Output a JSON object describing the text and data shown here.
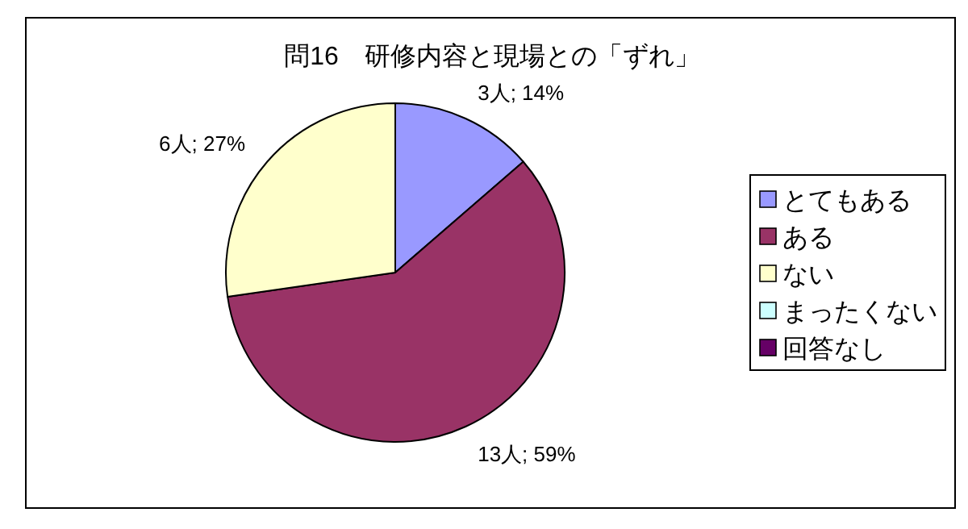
{
  "chart_data": {
    "type": "pie",
    "title": "問16　研修内容と現場との「ずれ」",
    "categories": [
      "とてもある",
      "ある",
      "ない",
      "まったくない",
      "回答なし"
    ],
    "values": [
      3,
      13,
      6,
      0,
      0
    ],
    "value_labels": [
      "3人; 14%",
      "13人; 59%",
      "6人; 27%",
      null,
      null
    ],
    "colors": [
      "#9999ff",
      "#993366",
      "#ffffcc",
      "#ccffff",
      "#660066"
    ],
    "legend": "right"
  }
}
